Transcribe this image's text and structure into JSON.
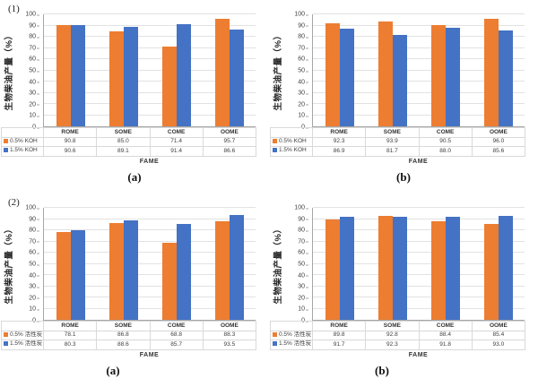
{
  "figure": {
    "ylabel": "生物柴油产量（%）",
    "xlabel": "FAME",
    "colors": {
      "series1": "#ED7D31",
      "series2": "#4472C4",
      "grid": "#E2E2E2",
      "axis": "#A6A6A6",
      "table_border": "#D9D9D9"
    }
  },
  "chart_data": [
    {
      "type": "bar",
      "group_label": "(1)",
      "sub_label": "(a)",
      "title": "",
      "xlabel": "FAME",
      "ylabel": "生物柴油产量（%）",
      "ylim": [
        0,
        100
      ],
      "ytick_step": 10,
      "grid": true,
      "legend_position": "bottom-table",
      "categories": [
        "ROME",
        "SOME",
        "COME",
        "OOME"
      ],
      "series": [
        {
          "name": "0.5% KOH",
          "color": "#ED7D31",
          "values": [
            90.8,
            85.0,
            71.4,
            95.7
          ]
        },
        {
          "name": "1.5% KOH",
          "color": "#4472C4",
          "values": [
            90.6,
            89.1,
            91.4,
            86.6
          ]
        }
      ]
    },
    {
      "type": "bar",
      "group_label": "",
      "sub_label": "(b)",
      "title": "",
      "xlabel": "FAME",
      "ylabel": "生物柴油产量（%）",
      "ylim": [
        0,
        100
      ],
      "ytick_step": 10,
      "grid": true,
      "legend_position": "bottom-table",
      "categories": [
        "ROME",
        "SOME",
        "COME",
        "OOME"
      ],
      "series": [
        {
          "name": "0.5% KOH",
          "color": "#ED7D31",
          "values": [
            92.3,
            93.9,
            90.5,
            96.0
          ]
        },
        {
          "name": "1.5% KOH",
          "color": "#4472C4",
          "values": [
            86.9,
            81.7,
            88.0,
            85.6
          ]
        }
      ]
    },
    {
      "type": "bar",
      "group_label": "(2)",
      "sub_label": "(a)",
      "title": "",
      "xlabel": "FAME",
      "ylabel": "生物柴油产量（%）",
      "ylim": [
        0,
        100
      ],
      "ytick_step": 10,
      "grid": true,
      "legend_position": "bottom-table",
      "categories": [
        "ROME",
        "SOME",
        "COME",
        "OOME"
      ],
      "series": [
        {
          "name": "0.5% 活性炭",
          "color": "#ED7D31",
          "values": [
            78.1,
            86.8,
            68.8,
            88.3
          ]
        },
        {
          "name": "1.5% 活性炭",
          "color": "#4472C4",
          "values": [
            80.3,
            88.6,
            85.7,
            93.5
          ]
        }
      ]
    },
    {
      "type": "bar",
      "group_label": "",
      "sub_label": "(b)",
      "title": "",
      "xlabel": "FAME",
      "ylabel": "生物柴油产量（%）",
      "ylim": [
        0,
        100
      ],
      "ytick_step": 10,
      "grid": true,
      "legend_position": "bottom-table",
      "categories": [
        "ROME",
        "SOME",
        "COME",
        "OOME"
      ],
      "series": [
        {
          "name": "0.5% 活性炭",
          "color": "#ED7D31",
          "values": [
            89.8,
            92.8,
            88.4,
            85.4
          ]
        },
        {
          "name": "1.5% 活性炭",
          "color": "#4472C4",
          "values": [
            91.7,
            92.3,
            91.8,
            93.0
          ]
        }
      ]
    }
  ]
}
